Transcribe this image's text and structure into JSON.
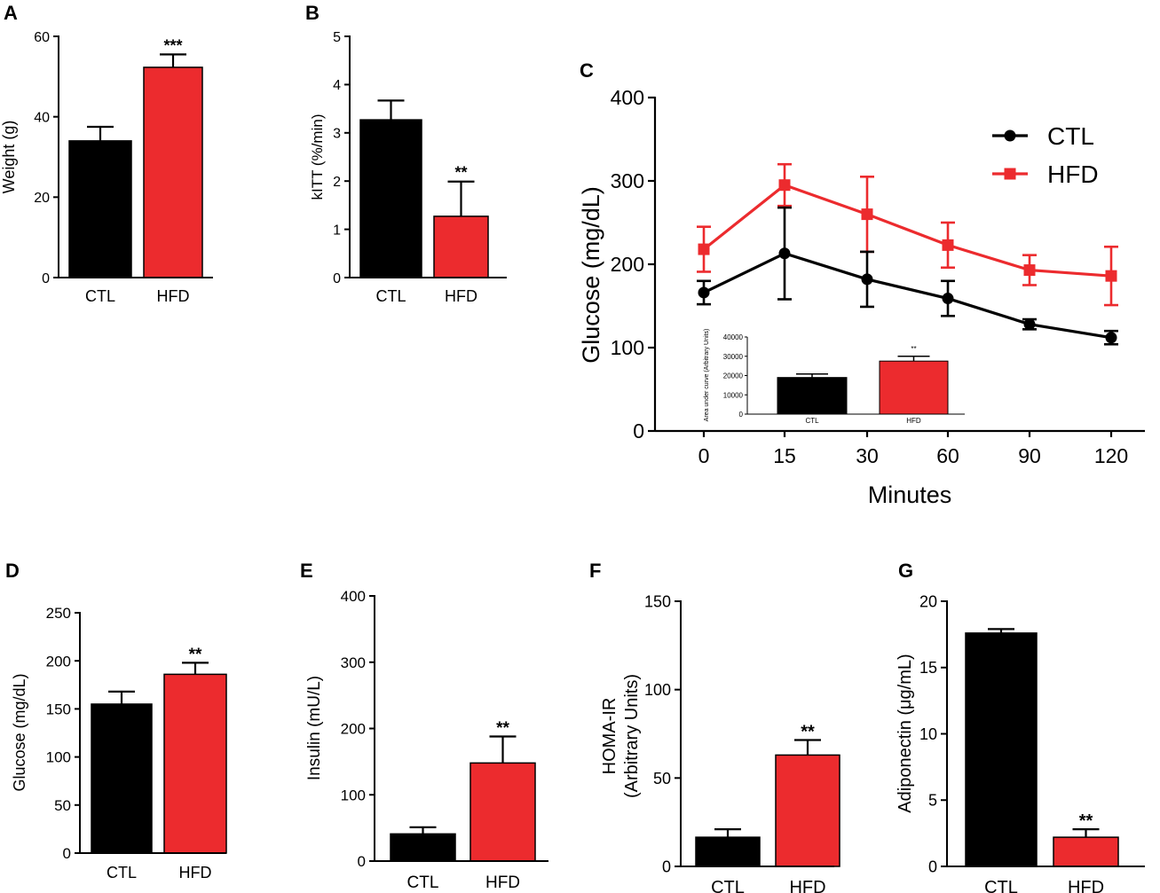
{
  "colors": {
    "ctl": "#000000",
    "hfd": "#ec2b2e"
  },
  "chart_data": [
    {
      "id": "A",
      "panel_label": "A",
      "type": "bar",
      "categories": [
        "CTL",
        "HFD"
      ],
      "values": [
        34,
        52.3
      ],
      "errors": [
        3.5,
        3.2
      ],
      "ylabel": "Weight (g)",
      "ylim": [
        0,
        60
      ],
      "yticks": [
        0,
        20,
        40,
        60
      ],
      "significance": "***",
      "sig_on": 1
    },
    {
      "id": "B",
      "panel_label": "B",
      "type": "bar",
      "categories": [
        "CTL",
        "HFD"
      ],
      "values": [
        3.27,
        1.27
      ],
      "errors": [
        0.4,
        0.72
      ],
      "ylabel": "kITT (%/min)",
      "ylim": [
        0,
        5
      ],
      "yticks": [
        0,
        1,
        2,
        3,
        4,
        5
      ],
      "significance": "**",
      "sig_on": 1
    },
    {
      "id": "C",
      "panel_label": "C",
      "type": "line",
      "x": [
        "0",
        "15",
        "30",
        "60",
        "90",
        "120"
      ],
      "xlabel": "Minutes",
      "ylabel": "Glucose (mg/dL)",
      "ylim": [
        0,
        400
      ],
      "yticks": [
        0,
        100,
        200,
        300,
        400
      ],
      "legend": "top-right",
      "series": [
        {
          "name": "CTL",
          "values": [
            166,
            213,
            182,
            159,
            128,
            112
          ],
          "errors": [
            14,
            55,
            33,
            21,
            6,
            8
          ]
        },
        {
          "name": "HFD",
          "values": [
            218,
            295,
            260,
            223,
            193,
            186
          ],
          "errors": [
            27,
            25,
            45,
            27,
            18,
            35
          ]
        }
      ],
      "inset": {
        "type": "bar",
        "ylabel": "Area under curve (Arbitrary Units)",
        "categories": [
          "CTL",
          "HFD"
        ],
        "values": [
          19000,
          27500
        ],
        "errors": [
          1800,
          2500
        ],
        "ylim": [
          0,
          40000
        ],
        "yticks": [
          0,
          10000,
          20000,
          30000,
          40000
        ],
        "significance": "**",
        "sig_on": 1
      }
    },
    {
      "id": "D",
      "panel_label": "D",
      "type": "bar",
      "categories": [
        "CTL",
        "HFD"
      ],
      "values": [
        155,
        186
      ],
      "errors": [
        13,
        12
      ],
      "ylabel": "Glucose (mg/dL)",
      "ylim": [
        0,
        250
      ],
      "yticks": [
        0,
        50,
        100,
        150,
        200,
        250
      ],
      "significance": "**",
      "sig_on": 1
    },
    {
      "id": "E",
      "panel_label": "E",
      "type": "bar",
      "categories": [
        "CTL",
        "HFD"
      ],
      "values": [
        41,
        148
      ],
      "errors": [
        10,
        40
      ],
      "ylabel": "Insulin (mU/L)",
      "ylim": [
        0,
        400
      ],
      "yticks": [
        0,
        100,
        200,
        300,
        400
      ],
      "significance": "**",
      "sig_on": 1
    },
    {
      "id": "F",
      "panel_label": "F",
      "type": "bar",
      "categories": [
        "CTL",
        "HFD"
      ],
      "values": [
        16.5,
        63
      ],
      "errors": [
        4.5,
        8.5
      ],
      "ylabel": [
        "HOMA-IR",
        "(Arbitrary Units)"
      ],
      "ylim": [
        0,
        150
      ],
      "yticks": [
        0,
        50,
        100,
        150
      ],
      "significance": "**",
      "sig_on": 1
    },
    {
      "id": "G",
      "panel_label": "G",
      "type": "bar",
      "categories": [
        "CTL",
        "HFD"
      ],
      "values": [
        17.6,
        2.2
      ],
      "errors": [
        0.3,
        0.6
      ],
      "ylabel": "Adiponectin (μg/mL)",
      "ylim": [
        0,
        20
      ],
      "yticks": [
        0,
        5,
        10,
        15,
        20
      ],
      "significance": "**",
      "sig_on": 1
    }
  ]
}
